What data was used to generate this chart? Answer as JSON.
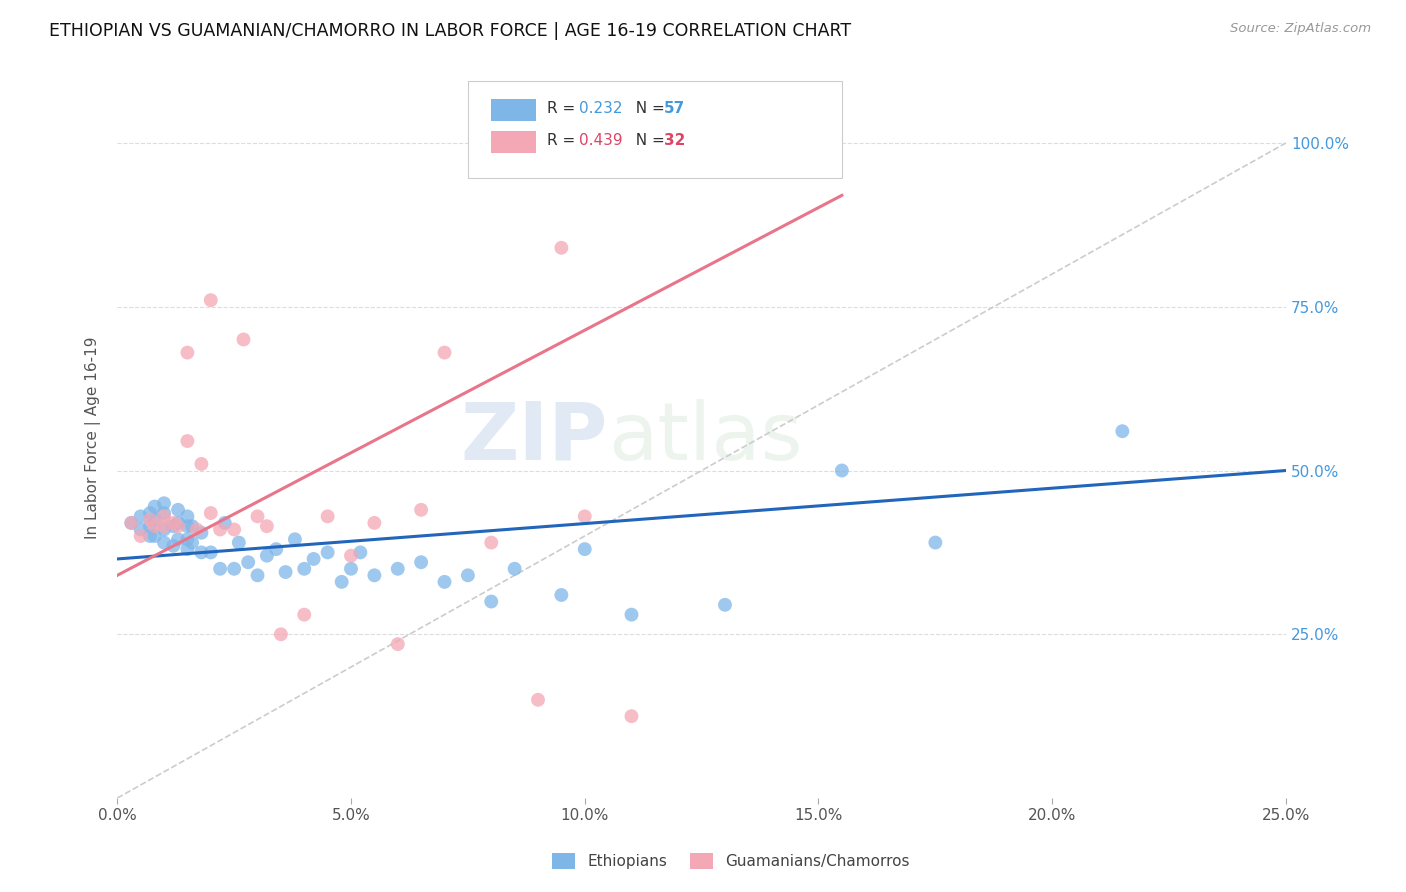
{
  "title": "ETHIOPIAN VS GUAMANIAN/CHAMORRO IN LABOR FORCE | AGE 16-19 CORRELATION CHART",
  "source": "Source: ZipAtlas.com",
  "ylabel": "In Labor Force | Age 16-19",
  "x_tick_labels": [
    "0.0%",
    "5.0%",
    "10.0%",
    "15.0%",
    "20.0%",
    "25.0%"
  ],
  "x_tick_values": [
    0.0,
    0.05,
    0.1,
    0.15,
    0.2,
    0.25
  ],
  "y_tick_labels": [
    "25.0%",
    "50.0%",
    "75.0%",
    "100.0%"
  ],
  "y_tick_values": [
    0.25,
    0.5,
    0.75,
    1.0
  ],
  "xlim": [
    0.0,
    0.25
  ],
  "ylim": [
    0.0,
    1.1
  ],
  "blue_R": "0.232",
  "blue_N": "57",
  "pink_R": "0.439",
  "pink_N": "32",
  "blue_color": "#7EB6E8",
  "pink_color": "#F4A7B4",
  "blue_line_color": "#2266BB",
  "pink_line_color": "#E8758A",
  "diag_line_color": "#CCCCCC",
  "legend_label_blue": "Ethiopians",
  "legend_label_pink": "Guamanians/Chamorros",
  "watermark_zip": "ZIP",
  "watermark_atlas": "atlas",
  "blue_scatter_x": [
    0.003,
    0.005,
    0.005,
    0.007,
    0.007,
    0.007,
    0.008,
    0.008,
    0.008,
    0.01,
    0.01,
    0.01,
    0.01,
    0.012,
    0.012,
    0.013,
    0.013,
    0.013,
    0.015,
    0.015,
    0.015,
    0.015,
    0.016,
    0.016,
    0.018,
    0.018,
    0.02,
    0.022,
    0.023,
    0.025,
    0.026,
    0.028,
    0.03,
    0.032,
    0.034,
    0.036,
    0.038,
    0.04,
    0.042,
    0.045,
    0.048,
    0.05,
    0.052,
    0.055,
    0.06,
    0.065,
    0.07,
    0.075,
    0.08,
    0.085,
    0.095,
    0.1,
    0.11,
    0.13,
    0.155,
    0.175,
    0.215
  ],
  "blue_scatter_y": [
    0.42,
    0.41,
    0.43,
    0.4,
    0.415,
    0.435,
    0.4,
    0.425,
    0.445,
    0.39,
    0.41,
    0.435,
    0.45,
    0.385,
    0.415,
    0.395,
    0.42,
    0.44,
    0.38,
    0.395,
    0.415,
    0.43,
    0.39,
    0.415,
    0.375,
    0.405,
    0.375,
    0.35,
    0.42,
    0.35,
    0.39,
    0.36,
    0.34,
    0.37,
    0.38,
    0.345,
    0.395,
    0.35,
    0.365,
    0.375,
    0.33,
    0.35,
    0.375,
    0.34,
    0.35,
    0.36,
    0.33,
    0.34,
    0.3,
    0.35,
    0.31,
    0.38,
    0.28,
    0.295,
    0.5,
    0.39,
    0.56
  ],
  "pink_scatter_x": [
    0.003,
    0.005,
    0.007,
    0.008,
    0.01,
    0.01,
    0.012,
    0.013,
    0.015,
    0.015,
    0.017,
    0.018,
    0.02,
    0.02,
    0.022,
    0.025,
    0.027,
    0.03,
    0.032,
    0.035,
    0.04,
    0.045,
    0.05,
    0.055,
    0.06,
    0.065,
    0.07,
    0.08,
    0.09,
    0.095,
    0.1,
    0.11
  ],
  "pink_scatter_y": [
    0.42,
    0.4,
    0.425,
    0.415,
    0.415,
    0.43,
    0.42,
    0.415,
    0.545,
    0.68,
    0.41,
    0.51,
    0.435,
    0.76,
    0.41,
    0.41,
    0.7,
    0.43,
    0.415,
    0.25,
    0.28,
    0.43,
    0.37,
    0.42,
    0.235,
    0.44,
    0.68,
    0.39,
    0.15,
    0.84,
    0.43,
    0.125
  ],
  "blue_trend_x": [
    0.0,
    0.25
  ],
  "blue_trend_y": [
    0.365,
    0.5
  ],
  "pink_trend_x": [
    0.0,
    0.155
  ],
  "pink_trend_y": [
    0.34,
    0.92
  ]
}
